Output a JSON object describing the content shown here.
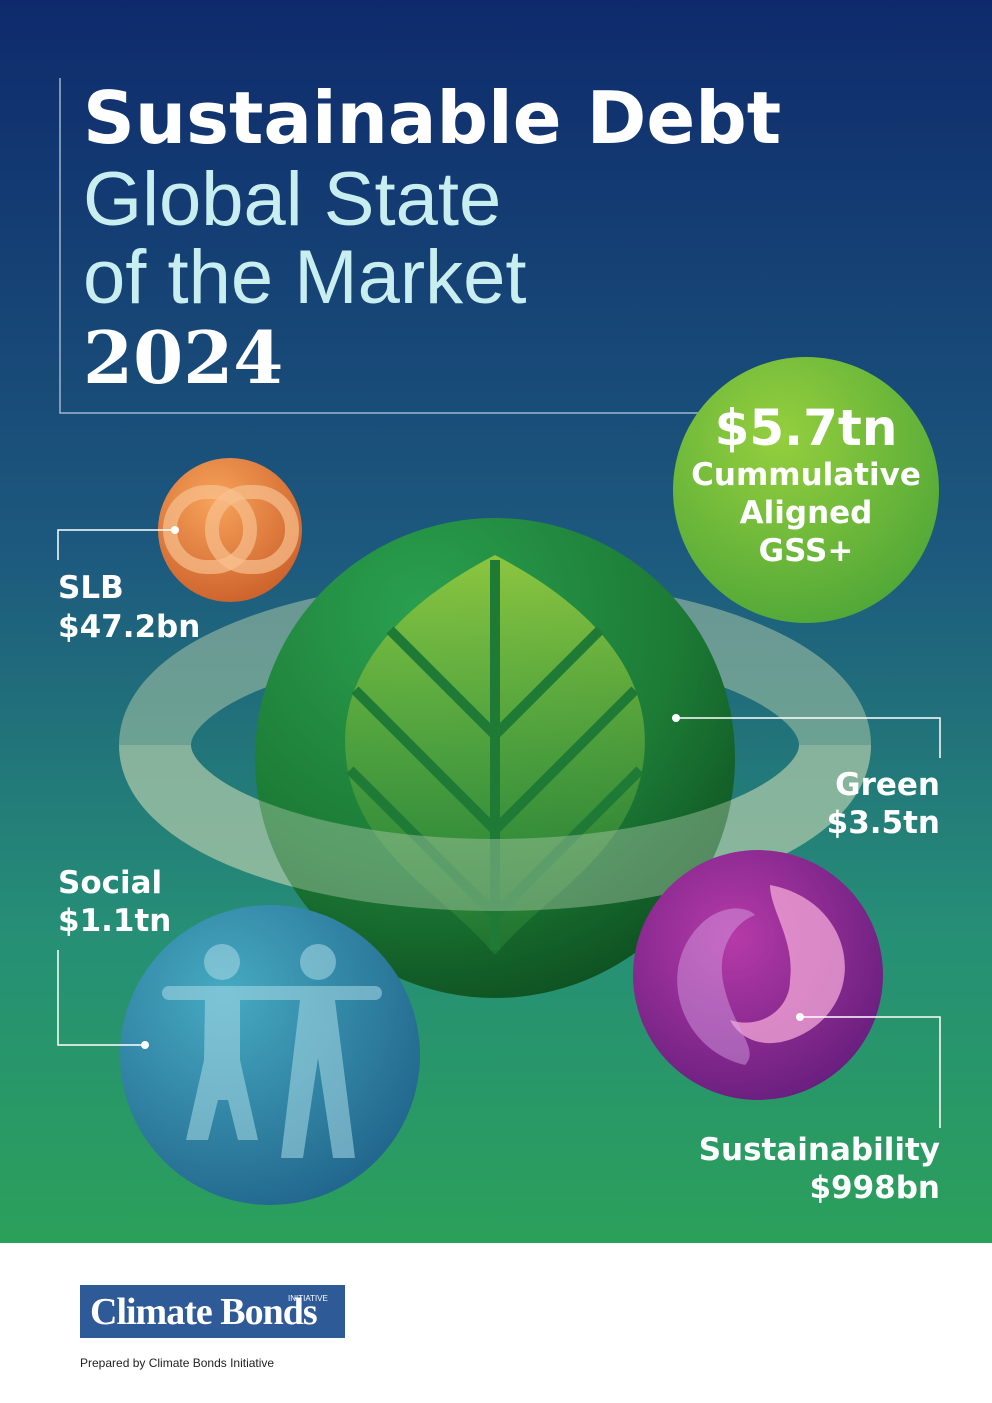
{
  "title": {
    "line1": "Sustainable Debt",
    "line2": "Global State",
    "line3": "of the Market",
    "year": "2024"
  },
  "highlight": {
    "value": "$5.7tn",
    "label_lines": [
      "Cummulative",
      "Aligned",
      "GSS+"
    ]
  },
  "segments": [
    {
      "name": "SLB",
      "value": "$47.2bn"
    },
    {
      "name": "Green",
      "value": "$3.5tn"
    },
    {
      "name": "Social",
      "value": "$1.1tn"
    },
    {
      "name": "Sustainability",
      "value": "$998bn"
    }
  ],
  "footer": {
    "logo_main": "Climate Bonds",
    "logo_small": "INITIATIVE",
    "credit": "Prepared by Climate Bonds Initiative"
  }
}
